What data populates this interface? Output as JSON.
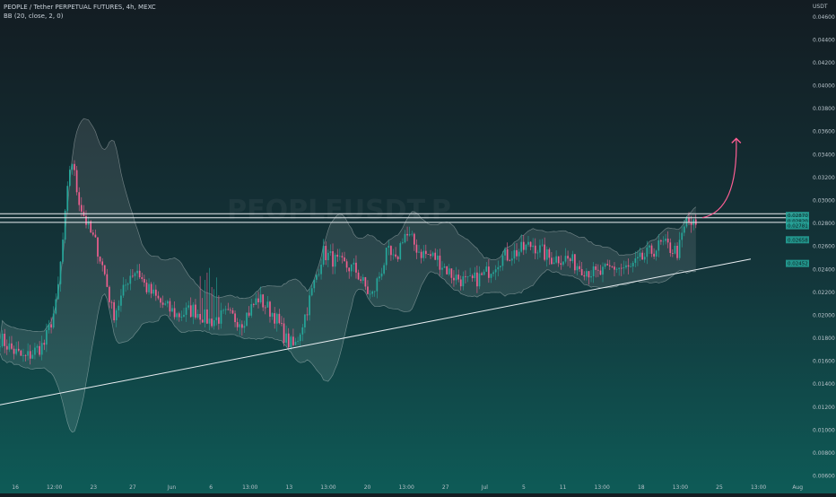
{
  "header": {
    "title": "PEOPLE / Tether PERPETUAL FUTURES, 4h, MEXC",
    "indicator": "BB (20, close, 2, 0)"
  },
  "colors": {
    "bull": "#26a69a",
    "bear": "#ef5f8f",
    "band_fill": "rgba(255,255,255,0.10)",
    "band_line": "rgba(255,255,255,0.35)",
    "trendline": "#e9eef2",
    "resistance": "#e9eef2",
    "arrow": "#ff5f95",
    "price_tag": "#26a69a"
  },
  "chart_data": {
    "type": "candlestick",
    "y_unit": "USDT",
    "ylim": [
      0.0055,
      0.047
    ],
    "yticks": [
      "0.04600",
      "0.04400",
      "0.04200",
      "0.04000",
      "0.03800",
      "0.03600",
      "0.03400",
      "0.03200",
      "0.03000",
      "0.02800",
      "0.02600",
      "0.02400",
      "0.02200",
      "0.02000",
      "0.01800",
      "0.01600",
      "0.01400",
      "0.01200",
      "0.01000",
      "0.00800",
      "0.00600"
    ],
    "xticks": [
      "16",
      "12:00",
      "23",
      "27",
      "Jun",
      "6",
      "13:00",
      "13",
      "13:00",
      "20",
      "13:00",
      "27",
      "Jul",
      "5",
      "11",
      "13:00",
      "18",
      "13:00",
      "25",
      "13:00",
      "Aug"
    ],
    "price_tags": [
      {
        "label": "0.02870",
        "value": 0.0287
      },
      {
        "label": "0.02820",
        "value": 0.0282
      },
      {
        "label": "0.02781",
        "value": 0.0278
      },
      {
        "label": "0.02658",
        "value": 0.02658
      },
      {
        "label": "0.02452",
        "value": 0.02452
      }
    ],
    "watermark": "PEOPLEUSDT.P",
    "trendline": {
      "start": [
        0.0,
        0.0122
      ],
      "end": [
        0.93,
        0.0249
      ]
    },
    "resistance_levels": [
      0.02885,
      0.0285,
      0.0281
    ],
    "arrow": {
      "from": [
        0.87,
        0.0285
      ],
      "to": [
        0.912,
        0.0354
      ]
    },
    "series": [
      {
        "name": "price",
        "keys": [
          0.0,
          0.015,
          0.03,
          0.055,
          0.07,
          0.08,
          0.088,
          0.095,
          0.1,
          0.105,
          0.11,
          0.12,
          0.13,
          0.14,
          0.15,
          0.16,
          0.17,
          0.18,
          0.2,
          0.22,
          0.24,
          0.26,
          0.28,
          0.3,
          0.32,
          0.34,
          0.355,
          0.365,
          0.38,
          0.4,
          0.42,
          0.44,
          0.46,
          0.48,
          0.49,
          0.5,
          0.51,
          0.52,
          0.54,
          0.56,
          0.58,
          0.6,
          0.62,
          0.64,
          0.66,
          0.68,
          0.7,
          0.72,
          0.74,
          0.76,
          0.78,
          0.8,
          0.82,
          0.84,
          0.85,
          0.86
        ],
        "values": [
          0.018,
          0.017,
          0.0162,
          0.0175,
          0.021,
          0.028,
          0.034,
          0.031,
          0.0295,
          0.0285,
          0.0275,
          0.026,
          0.0235,
          0.02,
          0.0215,
          0.0235,
          0.024,
          0.0225,
          0.021,
          0.02,
          0.0205,
          0.0195,
          0.02,
          0.0195,
          0.0215,
          0.02,
          0.0178,
          0.0172,
          0.0205,
          0.0255,
          0.0245,
          0.024,
          0.0215,
          0.0255,
          0.0245,
          0.0272,
          0.0265,
          0.0255,
          0.025,
          0.0235,
          0.0228,
          0.0235,
          0.025,
          0.0255,
          0.0262,
          0.025,
          0.025,
          0.0242,
          0.0235,
          0.0242,
          0.024,
          0.0252,
          0.0262,
          0.0255,
          0.0282,
          0.0278
        ]
      }
    ]
  }
}
